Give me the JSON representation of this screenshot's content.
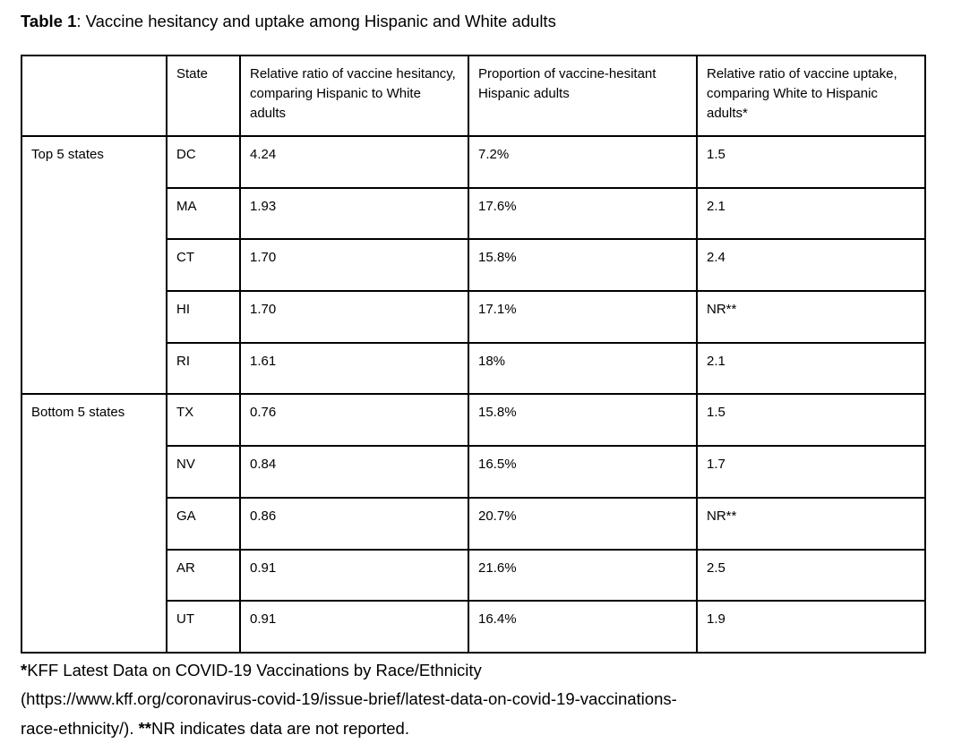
{
  "colors": {
    "background": "#ffffff",
    "text": "#000000",
    "table_border": "#000000"
  },
  "title": {
    "bold": "Table 1",
    "rest": ": Vaccine hesitancy and uptake among Hispanic and White adults"
  },
  "table": {
    "headers": {
      "group": "",
      "state": "State",
      "hesitancy": "Relative ratio of vaccine hesitancy, comparing Hispanic to White adults",
      "proportion": "Proportion of vaccine-hesitant Hispanic adults",
      "uptake": "Relative ratio of vaccine uptake, comparing White to Hispanic adults*"
    },
    "groups": [
      {
        "label": "Top 5 states",
        "rows": [
          {
            "state": "DC",
            "hesitancy": "4.24",
            "proportion": "7.2%",
            "uptake": "1.5"
          },
          {
            "state": "MA",
            "hesitancy": "1.93",
            "proportion": "17.6%",
            "uptake": "2.1"
          },
          {
            "state": "CT",
            "hesitancy": "1.70",
            "proportion": "15.8%",
            "uptake": "2.4"
          },
          {
            "state": "HI",
            "hesitancy": "1.70",
            "proportion": "17.1%",
            "uptake": "NR**"
          },
          {
            "state": "RI",
            "hesitancy": "1.61",
            "proportion": "18%",
            "uptake": "2.1"
          }
        ]
      },
      {
        "label": "Bottom 5 states",
        "rows": [
          {
            "state": "TX",
            "hesitancy": "0.76",
            "proportion": "15.8%",
            "uptake": "1.5"
          },
          {
            "state": "NV",
            "hesitancy": "0.84",
            "proportion": "16.5%",
            "uptake": "1.7"
          },
          {
            "state": "GA",
            "hesitancy": "0.86",
            "proportion": "20.7%",
            "uptake": "NR**"
          },
          {
            "state": "AR",
            "hesitancy": "0.91",
            "proportion": "21.6%",
            "uptake": "2.5"
          },
          {
            "state": "UT",
            "hesitancy": "0.91",
            "proportion": "16.4%",
            "uptake": "1.9"
          }
        ]
      }
    ]
  },
  "footnote": {
    "lines": [
      {
        "prefix_bold": "*",
        "text": "KFF Latest Data on COVID-19 Vaccinations by Race/Ethnicity"
      },
      {
        "prefix_bold": "",
        "text": "(https://www.kff.org/coronavirus-covid-19/issue-brief/latest-data-on-covid-19-vaccinations-"
      },
      {
        "prefix_bold": "",
        "text": "race-ethnicity/). ",
        "mid_bold": "**",
        "text_after": "NR indicates data are not reported."
      }
    ]
  }
}
